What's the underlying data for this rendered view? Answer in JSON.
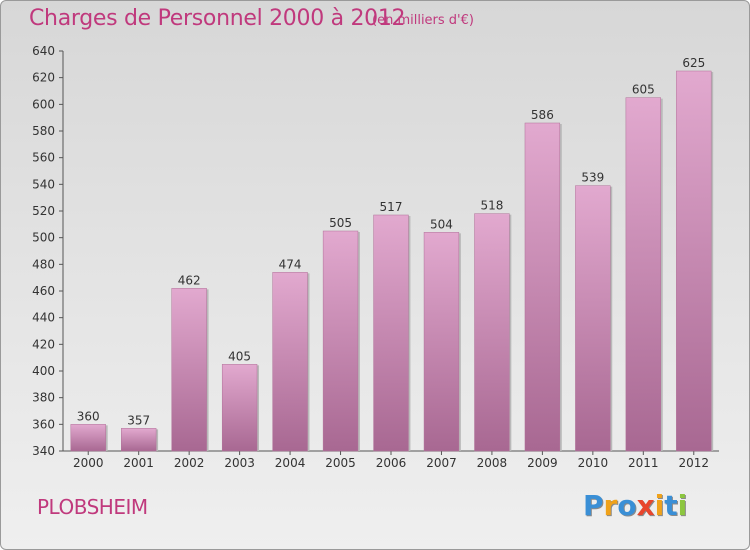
{
  "title": "Charges de Personnel 2000 à 2012",
  "subtitle": "(en milliers d'€)",
  "location": "PLOBSHEIM",
  "brand": {
    "name": "Proxiti",
    "letters": [
      {
        "ch": "P",
        "color": "#3a8fd6"
      },
      {
        "ch": "r",
        "color": "#f0a21a"
      },
      {
        "ch": "o",
        "color": "#3a8fd6"
      },
      {
        "ch": "x",
        "color": "#e8452c"
      },
      {
        "ch": "i",
        "color": "#f0a21a"
      },
      {
        "ch": "t",
        "color": "#3a8fd6"
      },
      {
        "ch": "i",
        "color": "#8cc63f"
      }
    ]
  },
  "colors": {
    "accent": "#c0397d",
    "bar_top": "#e2a9cf",
    "bar_bottom": "#a86892"
  },
  "chart_data": {
    "type": "bar",
    "categories": [
      "2000",
      "2001",
      "2002",
      "2003",
      "2004",
      "2005",
      "2006",
      "2007",
      "2008",
      "2009",
      "2010",
      "2011",
      "2012"
    ],
    "values": [
      360,
      357,
      462,
      405,
      474,
      505,
      517,
      504,
      518,
      586,
      539,
      605,
      625
    ],
    "yticks": [
      340,
      360,
      380,
      400,
      420,
      440,
      460,
      480,
      500,
      520,
      540,
      560,
      580,
      600,
      620,
      640
    ],
    "ylim": [
      340,
      640
    ],
    "grid": false,
    "legend": "none"
  }
}
